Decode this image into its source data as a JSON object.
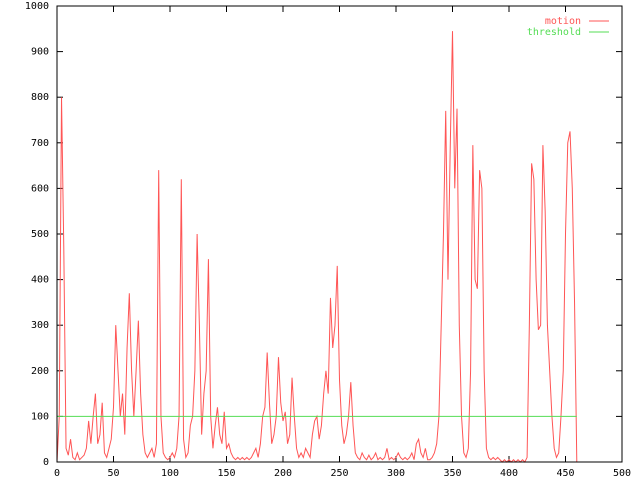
{
  "chart_data": {
    "type": "line",
    "xlim": [
      0,
      500
    ],
    "ylim": [
      0,
      1000
    ],
    "xticks": [
      0,
      50,
      100,
      150,
      200,
      250,
      300,
      350,
      400,
      450,
      500
    ],
    "yticks": [
      0,
      100,
      200,
      300,
      400,
      500,
      600,
      700,
      800,
      900,
      1000
    ],
    "legend": "top-right",
    "series": [
      {
        "name": "motion",
        "color": "#ff5555",
        "x": [
          0,
          2,
          4,
          6,
          8,
          10,
          12,
          14,
          16,
          18,
          20,
          22,
          24,
          26,
          28,
          30,
          32,
          34,
          36,
          38,
          40,
          42,
          44,
          46,
          48,
          50,
          52,
          54,
          56,
          58,
          60,
          62,
          64,
          66,
          68,
          70,
          72,
          74,
          76,
          78,
          80,
          82,
          84,
          86,
          88,
          90,
          92,
          94,
          96,
          98,
          100,
          102,
          104,
          106,
          108,
          110,
          112,
          114,
          116,
          118,
          120,
          122,
          124,
          126,
          128,
          130,
          132,
          134,
          136,
          138,
          140,
          142,
          144,
          146,
          148,
          150,
          152,
          154,
          156,
          158,
          160,
          162,
          164,
          166,
          168,
          170,
          172,
          174,
          176,
          178,
          180,
          182,
          184,
          186,
          188,
          190,
          192,
          194,
          196,
          198,
          200,
          202,
          204,
          206,
          208,
          210,
          212,
          214,
          216,
          218,
          220,
          222,
          224,
          226,
          228,
          230,
          232,
          234,
          236,
          238,
          240,
          242,
          244,
          246,
          248,
          250,
          252,
          254,
          256,
          258,
          260,
          262,
          264,
          266,
          268,
          270,
          272,
          274,
          276,
          278,
          280,
          282,
          284,
          286,
          288,
          290,
          292,
          294,
          296,
          298,
          300,
          302,
          304,
          306,
          308,
          310,
          312,
          314,
          316,
          318,
          320,
          322,
          324,
          326,
          328,
          330,
          332,
          334,
          336,
          338,
          340,
          342,
          344,
          346,
          348,
          350,
          352,
          354,
          356,
          358,
          360,
          362,
          364,
          366,
          368,
          370,
          372,
          374,
          376,
          378,
          380,
          382,
          384,
          386,
          388,
          390,
          392,
          394,
          396,
          398,
          400,
          402,
          404,
          406,
          408,
          410,
          412,
          414,
          416,
          418,
          420,
          422,
          424,
          426,
          428,
          430,
          432,
          434,
          436,
          438,
          440,
          442,
          444,
          446,
          448,
          450,
          452,
          454,
          456,
          458,
          460
        ],
        "values": [
          0,
          100,
          800,
          470,
          30,
          15,
          50,
          10,
          5,
          20,
          5,
          10,
          15,
          30,
          90,
          40,
          100,
          150,
          40,
          60,
          130,
          20,
          10,
          30,
          50,
          120,
          300,
          200,
          100,
          150,
          60,
          250,
          370,
          200,
          100,
          200,
          310,
          150,
          60,
          20,
          10,
          20,
          30,
          10,
          40,
          640,
          100,
          20,
          10,
          5,
          10,
          20,
          10,
          30,
          100,
          620,
          50,
          10,
          20,
          80,
          100,
          200,
          500,
          300,
          60,
          150,
          200,
          445,
          100,
          30,
          80,
          120,
          60,
          40,
          110,
          30,
          40,
          20,
          10,
          5,
          10,
          5,
          10,
          5,
          10,
          5,
          10,
          20,
          30,
          10,
          40,
          100,
          120,
          240,
          130,
          40,
          60,
          100,
          230,
          130,
          90,
          110,
          40,
          60,
          185,
          100,
          30,
          10,
          20,
          10,
          30,
          20,
          10,
          60,
          90,
          100,
          50,
          80,
          150,
          200,
          150,
          360,
          250,
          300,
          430,
          180,
          80,
          40,
          60,
          100,
          175,
          80,
          20,
          10,
          5,
          20,
          10,
          5,
          15,
          5,
          10,
          20,
          5,
          10,
          5,
          10,
          30,
          5,
          10,
          5,
          10,
          20,
          10,
          5,
          10,
          5,
          10,
          20,
          5,
          40,
          50,
          20,
          10,
          30,
          5,
          5,
          10,
          20,
          40,
          100,
          300,
          500,
          770,
          400,
          690,
          945,
          600,
          775,
          300,
          100,
          20,
          10,
          30,
          200,
          695,
          400,
          380,
          640,
          600,
          200,
          30,
          10,
          5,
          10,
          5,
          10,
          5,
          0,
          5,
          0,
          5,
          0,
          5,
          0,
          5,
          0,
          5,
          0,
          10,
          300,
          655,
          620,
          400,
          290,
          300,
          695,
          550,
          300,
          200,
          100,
          30,
          10,
          20,
          100,
          200,
          500,
          700,
          725,
          600,
          350,
          0
        ]
      },
      {
        "name": "threshold",
        "color": "#55dd55",
        "x": [
          0,
          460
        ],
        "values": [
          100,
          100
        ]
      }
    ]
  }
}
